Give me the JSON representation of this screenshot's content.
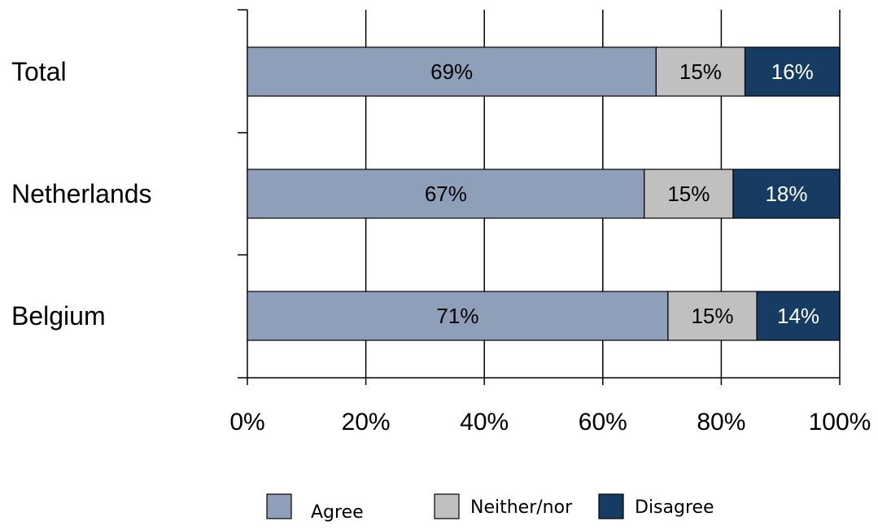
{
  "chart_data": {
    "type": "bar",
    "orientation": "horizontal",
    "stacked": true,
    "categories": [
      "Total",
      "Netherlands",
      "Belgium"
    ],
    "series": [
      {
        "name": "Agree",
        "values": [
          69,
          67,
          71
        ],
        "labels": [
          "69%",
          "67%",
          "71%"
        ],
        "color": "#8f9fb9",
        "label_color": "#000000"
      },
      {
        "name": "Neither/nor",
        "values": [
          15,
          15,
          15
        ],
        "labels": [
          "15%",
          "15%",
          "15%"
        ],
        "color": "#c0c0c0",
        "label_color": "#000000"
      },
      {
        "name": "Disagree",
        "values": [
          16,
          18,
          14
        ],
        "labels": [
          "16%",
          "18%",
          "14%"
        ],
        "color": "#173c64",
        "label_color": "#ffffff"
      }
    ],
    "xlim": [
      0,
      100
    ],
    "x_ticks": [
      "0%",
      "20%",
      "40%",
      "60%",
      "80%",
      "100%"
    ],
    "grid": "vertical",
    "legend_position": "bottom",
    "title": "",
    "xlabel": "",
    "ylabel": ""
  }
}
